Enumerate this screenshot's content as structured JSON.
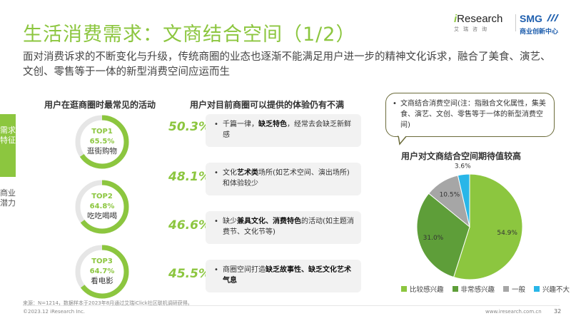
{
  "title": "生活消费需求：文商结合空间（1/2）",
  "subtitle": "面对消费诉求的不断变化与升级，传统商圈的业态也逐渐不能满足用户进一步的精神文化诉求，融合了美食、演艺、文创、零售等于一体的新型消费空间应运而生",
  "logos": {
    "iresearch_i": "i",
    "iresearch_name": "Research",
    "iresearch_cn": "艾瑞咨询",
    "smg_name": "SMG",
    "smg_cn": "商业创新中心"
  },
  "side_tabs": [
    {
      "label": "需求特征",
      "active": true
    },
    {
      "label": "商业潜力",
      "active": false
    }
  ],
  "left_header": "用户在逛商圈时最常见的活动",
  "middle_header": "用户对目前商圈可以提供的体验仍有不满",
  "activities": [
    {
      "rank": "TOP1",
      "pct_label": "65.5%",
      "value": 65.5,
      "name": "逛街购物"
    },
    {
      "rank": "TOP2",
      "pct_label": "64.8%",
      "value": 64.8,
      "name": "吃吃喝喝"
    },
    {
      "rank": "TOP3",
      "pct_label": "64.7%",
      "value": 64.7,
      "name": "看电影"
    }
  ],
  "dissatisfactions": [
    {
      "pct_label": "50.3%",
      "value": 50.3,
      "text_before": "千篇一律，",
      "text_bold": "缺乏特色",
      "text_after": "，经常去会缺乏新鲜感"
    },
    {
      "pct_label": "48.1%",
      "value": 48.1,
      "text_before": "文化",
      "text_bold": "艺术类",
      "text_after": "场所(如艺术空间、演出场所)和体验较少"
    },
    {
      "pct_label": "46.6%",
      "value": 46.6,
      "text_before": "缺少",
      "text_bold": "兼具文化、消费特色",
      "text_after": "的活动(如主题消费节、文化节等)"
    },
    {
      "pct_label": "45.5%",
      "value": 45.5,
      "text_before": "商圈空间打造",
      "text_bold": "缺乏故事性、缺乏文化艺术气息",
      "text_after": ""
    }
  ],
  "definition_note": "文商结合消费空间(注：指融合文化属性，集美食、演艺、文创、零售等于一体的新型消费空间)",
  "chart_data": {
    "type": "pie",
    "title": "用户对文商结合空间期待值较高",
    "series": [
      {
        "name": "比较感兴趣",
        "value": 54.9,
        "label": "54.9%",
        "color": "#8cc63f"
      },
      {
        "name": "非常感兴趣",
        "value": 31.0,
        "label": "31.0%",
        "color": "#5e9e39"
      },
      {
        "name": "一般",
        "value": 10.5,
        "label": "10.5%",
        "color": "#a6a6a6"
      },
      {
        "name": "兴趣不大",
        "value": 3.6,
        "label": "3.6%",
        "color": "#29b6e8"
      }
    ]
  },
  "colors": {
    "accent": "#8cc63f",
    "accent_dark": "#5e9e39",
    "track": "#e6e6e6",
    "card_bg": "#f2f2f2"
  },
  "source": "来源：N=1214，数据样本于2023年8月通过艾瑞iClick社区联机调研获得。",
  "footer_left": "©2023.12 iResearch Inc.",
  "footer_right": "www.iresearch.com.cn",
  "page_number": "32"
}
